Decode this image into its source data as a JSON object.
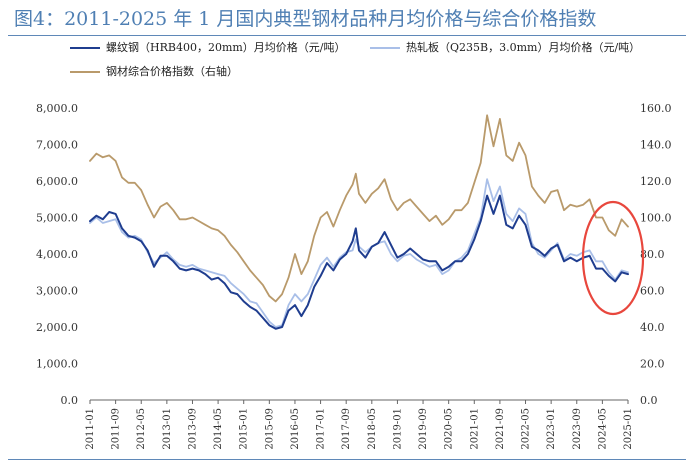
{
  "title": "图4：2011-2025 年 1 月国内典型钢材品种月均价格与综合价格指数",
  "chart_data": {
    "type": "line",
    "legend": [
      {
        "name": "螺纹钢（HRB400，20mm）月均价格（元/吨）",
        "color": "#1f3d8f",
        "axis": "left"
      },
      {
        "name": "热轧板（Q235B，3.0mm）月均价格（元/吨）",
        "color": "#a9bfe8",
        "axis": "left"
      },
      {
        "name": "钢材综合价格指数（右轴）",
        "color": "#b99a6b",
        "axis": "right"
      }
    ],
    "y_left": {
      "min": 0,
      "max": 8000,
      "ticks": [
        "0.0",
        "1,000.0",
        "2,000.0",
        "3,000.0",
        "4,000.0",
        "5,000.0",
        "6,000.0",
        "7,000.0",
        "8,000.0"
      ]
    },
    "y_right": {
      "min": 0,
      "max": 160,
      "ticks": [
        "0.0",
        "20.0",
        "40.0",
        "60.0",
        "80.0",
        "100.0",
        "120.0",
        "140.0",
        "160.0"
      ]
    },
    "x_ticks": [
      "2011-01",
      "2011-09",
      "2012-05",
      "2013-01",
      "2013-09",
      "2014-05",
      "2015-01",
      "2015-09",
      "2016-05",
      "2017-01",
      "2017-09",
      "2018-05",
      "2019-01",
      "2019-09",
      "2020-05",
      "2021-01",
      "2021-09",
      "2022-05",
      "2023-01",
      "2023-09",
      "2024-05",
      "2025-01"
    ],
    "series": [
      {
        "name": "螺纹钢（HRB400，20mm）月均价格（元/吨）",
        "color": "#1f3d8f",
        "axis": "left",
        "points": [
          [
            "2011-01",
            4900
          ],
          [
            "2011-03",
            5050
          ],
          [
            "2011-05",
            4950
          ],
          [
            "2011-07",
            5150
          ],
          [
            "2011-09",
            5100
          ],
          [
            "2011-11",
            4700
          ],
          [
            "2012-01",
            4500
          ],
          [
            "2012-03",
            4450
          ],
          [
            "2012-05",
            4350
          ],
          [
            "2012-07",
            4100
          ],
          [
            "2012-09",
            3650
          ],
          [
            "2012-11",
            3950
          ],
          [
            "2013-01",
            3950
          ],
          [
            "2013-03",
            3800
          ],
          [
            "2013-05",
            3600
          ],
          [
            "2013-07",
            3550
          ],
          [
            "2013-09",
            3600
          ],
          [
            "2013-11",
            3550
          ],
          [
            "2014-01",
            3450
          ],
          [
            "2014-03",
            3300
          ],
          [
            "2014-05",
            3350
          ],
          [
            "2014-07",
            3200
          ],
          [
            "2014-09",
            2950
          ],
          [
            "2014-11",
            2900
          ],
          [
            "2015-01",
            2700
          ],
          [
            "2015-03",
            2550
          ],
          [
            "2015-05",
            2450
          ],
          [
            "2015-07",
            2250
          ],
          [
            "2015-09",
            2050
          ],
          [
            "2015-11",
            1950
          ],
          [
            "2016-01",
            2000
          ],
          [
            "2016-03",
            2450
          ],
          [
            "2016-05",
            2600
          ],
          [
            "2016-07",
            2300
          ],
          [
            "2016-09",
            2600
          ],
          [
            "2016-11",
            3100
          ],
          [
            "2017-01",
            3400
          ],
          [
            "2017-03",
            3750
          ],
          [
            "2017-05",
            3550
          ],
          [
            "2017-07",
            3850
          ],
          [
            "2017-09",
            4000
          ],
          [
            "2017-11",
            4350
          ],
          [
            "2017-12",
            4700
          ],
          [
            "2018-01",
            4100
          ],
          [
            "2018-03",
            3900
          ],
          [
            "2018-05",
            4200
          ],
          [
            "2018-07",
            4300
          ],
          [
            "2018-09",
            4600
          ],
          [
            "2018-11",
            4250
          ],
          [
            "2019-01",
            3900
          ],
          [
            "2019-03",
            4000
          ],
          [
            "2019-05",
            4150
          ],
          [
            "2019-07",
            4000
          ],
          [
            "2019-09",
            3850
          ],
          [
            "2019-11",
            3800
          ],
          [
            "2020-01",
            3800
          ],
          [
            "2020-03",
            3550
          ],
          [
            "2020-05",
            3650
          ],
          [
            "2020-07",
            3800
          ],
          [
            "2020-09",
            3800
          ],
          [
            "2020-11",
            4000
          ],
          [
            "2021-01",
            4400
          ],
          [
            "2021-03",
            4900
          ],
          [
            "2021-05",
            5600
          ],
          [
            "2021-07",
            5100
          ],
          [
            "2021-09",
            5600
          ],
          [
            "2021-11",
            4800
          ],
          [
            "2022-01",
            4700
          ],
          [
            "2022-03",
            5050
          ],
          [
            "2022-05",
            4800
          ],
          [
            "2022-07",
            4200
          ],
          [
            "2022-09",
            4100
          ],
          [
            "2022-11",
            3950
          ],
          [
            "2023-01",
            4150
          ],
          [
            "2023-03",
            4250
          ],
          [
            "2023-05",
            3800
          ],
          [
            "2023-07",
            3900
          ],
          [
            "2023-09",
            3800
          ],
          [
            "2023-11",
            3900
          ],
          [
            "2024-01",
            3950
          ],
          [
            "2024-03",
            3600
          ],
          [
            "2024-05",
            3600
          ],
          [
            "2024-07",
            3400
          ],
          [
            "2024-09",
            3250
          ],
          [
            "2024-11",
            3500
          ],
          [
            "2025-01",
            3450
          ]
        ]
      },
      {
        "name": "热轧板（Q235B，3.0mm）月均价格（元/吨）",
        "color": "#a9bfe8",
        "axis": "left",
        "points": [
          [
            "2011-01",
            4850
          ],
          [
            "2011-03",
            5000
          ],
          [
            "2011-05",
            4850
          ],
          [
            "2011-07",
            4900
          ],
          [
            "2011-09",
            4950
          ],
          [
            "2011-11",
            4600
          ],
          [
            "2012-01",
            4450
          ],
          [
            "2012-03",
            4500
          ],
          [
            "2012-05",
            4400
          ],
          [
            "2012-07",
            4050
          ],
          [
            "2012-09",
            3750
          ],
          [
            "2012-11",
            3900
          ],
          [
            "2013-01",
            4050
          ],
          [
            "2013-03",
            3850
          ],
          [
            "2013-05",
            3700
          ],
          [
            "2013-07",
            3650
          ],
          [
            "2013-09",
            3700
          ],
          [
            "2013-11",
            3600
          ],
          [
            "2014-01",
            3550
          ],
          [
            "2014-03",
            3500
          ],
          [
            "2014-05",
            3450
          ],
          [
            "2014-07",
            3400
          ],
          [
            "2014-09",
            3200
          ],
          [
            "2014-11",
            3050
          ],
          [
            "2015-01",
            2900
          ],
          [
            "2015-03",
            2700
          ],
          [
            "2015-05",
            2650
          ],
          [
            "2015-07",
            2400
          ],
          [
            "2015-09",
            2150
          ],
          [
            "2015-11",
            2000
          ],
          [
            "2016-01",
            2050
          ],
          [
            "2016-03",
            2600
          ],
          [
            "2016-05",
            2900
          ],
          [
            "2016-07",
            2700
          ],
          [
            "2016-09",
            2900
          ],
          [
            "2016-11",
            3300
          ],
          [
            "2017-01",
            3700
          ],
          [
            "2017-03",
            3900
          ],
          [
            "2017-05",
            3650
          ],
          [
            "2017-07",
            3900
          ],
          [
            "2017-09",
            4050
          ],
          [
            "2017-11",
            4100
          ],
          [
            "2017-12",
            4400
          ],
          [
            "2018-01",
            4200
          ],
          [
            "2018-03",
            4050
          ],
          [
            "2018-05",
            4200
          ],
          [
            "2018-07",
            4300
          ],
          [
            "2018-09",
            4350
          ],
          [
            "2018-11",
            4000
          ],
          [
            "2019-01",
            3800
          ],
          [
            "2019-03",
            3950
          ],
          [
            "2019-05",
            4000
          ],
          [
            "2019-07",
            3850
          ],
          [
            "2019-09",
            3750
          ],
          [
            "2019-11",
            3650
          ],
          [
            "2020-01",
            3700
          ],
          [
            "2020-03",
            3450
          ],
          [
            "2020-05",
            3550
          ],
          [
            "2020-07",
            3800
          ],
          [
            "2020-09",
            3900
          ],
          [
            "2020-11",
            4100
          ],
          [
            "2021-01",
            4550
          ],
          [
            "2021-03",
            5000
          ],
          [
            "2021-05",
            6050
          ],
          [
            "2021-07",
            5450
          ],
          [
            "2021-09",
            5850
          ],
          [
            "2021-11",
            5100
          ],
          [
            "2022-01",
            4900
          ],
          [
            "2022-03",
            5250
          ],
          [
            "2022-05",
            5100
          ],
          [
            "2022-07",
            4300
          ],
          [
            "2022-09",
            4000
          ],
          [
            "2022-11",
            3900
          ],
          [
            "2023-01",
            4100
          ],
          [
            "2023-03",
            4300
          ],
          [
            "2023-05",
            3850
          ],
          [
            "2023-07",
            4000
          ],
          [
            "2023-09",
            3950
          ],
          [
            "2023-11",
            4050
          ],
          [
            "2024-01",
            4100
          ],
          [
            "2024-03",
            3800
          ],
          [
            "2024-05",
            3800
          ],
          [
            "2024-07",
            3500
          ],
          [
            "2024-09",
            3300
          ],
          [
            "2024-11",
            3550
          ],
          [
            "2025-01",
            3500
          ]
        ]
      },
      {
        "name": "钢材综合价格指数（右轴）",
        "color": "#b99a6b",
        "axis": "right",
        "points": [
          [
            "2011-01",
            131
          ],
          [
            "2011-03",
            135
          ],
          [
            "2011-05",
            133
          ],
          [
            "2011-07",
            134
          ],
          [
            "2011-09",
            131
          ],
          [
            "2011-11",
            122
          ],
          [
            "2012-01",
            119
          ],
          [
            "2012-03",
            119
          ],
          [
            "2012-05",
            115
          ],
          [
            "2012-07",
            107
          ],
          [
            "2012-09",
            100
          ],
          [
            "2012-11",
            106
          ],
          [
            "2013-01",
            108
          ],
          [
            "2013-03",
            104
          ],
          [
            "2013-05",
            99
          ],
          [
            "2013-07",
            99
          ],
          [
            "2013-09",
            100
          ],
          [
            "2013-11",
            98
          ],
          [
            "2014-01",
            96
          ],
          [
            "2014-03",
            94
          ],
          [
            "2014-05",
            93
          ],
          [
            "2014-07",
            90
          ],
          [
            "2014-09",
            85
          ],
          [
            "2014-11",
            81
          ],
          [
            "2015-01",
            76
          ],
          [
            "2015-03",
            71
          ],
          [
            "2015-05",
            67
          ],
          [
            "2015-07",
            63
          ],
          [
            "2015-09",
            57
          ],
          [
            "2015-11",
            54
          ],
          [
            "2016-01",
            58
          ],
          [
            "2016-03",
            67
          ],
          [
            "2016-05",
            80
          ],
          [
            "2016-07",
            69
          ],
          [
            "2016-09",
            76
          ],
          [
            "2016-11",
            90
          ],
          [
            "2017-01",
            100
          ],
          [
            "2017-03",
            103
          ],
          [
            "2017-05",
            95
          ],
          [
            "2017-07",
            104
          ],
          [
            "2017-09",
            112
          ],
          [
            "2017-11",
            118
          ],
          [
            "2017-12",
            124
          ],
          [
            "2018-01",
            113
          ],
          [
            "2018-03",
            108
          ],
          [
            "2018-05",
            113
          ],
          [
            "2018-07",
            116
          ],
          [
            "2018-09",
            121
          ],
          [
            "2018-11",
            110
          ],
          [
            "2019-01",
            104
          ],
          [
            "2019-03",
            108
          ],
          [
            "2019-05",
            110
          ],
          [
            "2019-07",
            106
          ],
          [
            "2019-09",
            102
          ],
          [
            "2019-11",
            98
          ],
          [
            "2020-01",
            101
          ],
          [
            "2020-03",
            96
          ],
          [
            "2020-05",
            99
          ],
          [
            "2020-07",
            104
          ],
          [
            "2020-09",
            104
          ],
          [
            "2020-11",
            108
          ],
          [
            "2021-01",
            119
          ],
          [
            "2021-03",
            130
          ],
          [
            "2021-05",
            156
          ],
          [
            "2021-07",
            139
          ],
          [
            "2021-09",
            154
          ],
          [
            "2021-11",
            134
          ],
          [
            "2022-01",
            131
          ],
          [
            "2022-03",
            141
          ],
          [
            "2022-05",
            134
          ],
          [
            "2022-07",
            117
          ],
          [
            "2022-09",
            112
          ],
          [
            "2022-11",
            108
          ],
          [
            "2023-01",
            114
          ],
          [
            "2023-03",
            115
          ],
          [
            "2023-05",
            104
          ],
          [
            "2023-07",
            107
          ],
          [
            "2023-09",
            106
          ],
          [
            "2023-11",
            107
          ],
          [
            "2024-01",
            110
          ],
          [
            "2024-03",
            100
          ],
          [
            "2024-05",
            100
          ],
          [
            "2024-07",
            93
          ],
          [
            "2024-09",
            90
          ],
          [
            "2024-11",
            99
          ],
          [
            "2025-01",
            95
          ]
        ]
      }
    ]
  }
}
